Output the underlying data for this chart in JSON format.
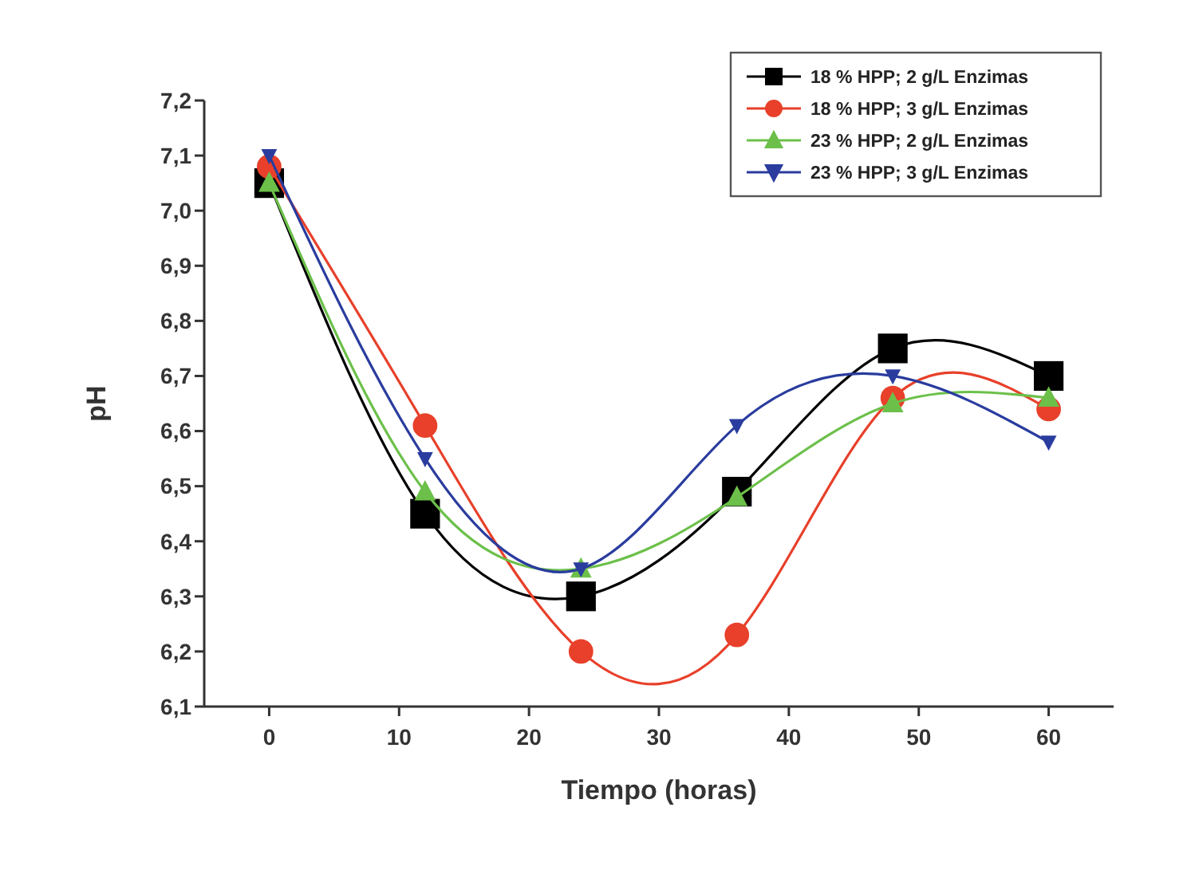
{
  "chart_data": {
    "type": "line",
    "xlabel": "Tiempo (horas)",
    "ylabel": "pH",
    "x": [
      0,
      12,
      24,
      36,
      48,
      60
    ],
    "series": [
      {
        "name": "18 % HPP; 2 g/L Enzimas",
        "color": "#000000",
        "marker": "square",
        "values": [
          7.05,
          6.45,
          6.3,
          6.49,
          6.75,
          6.7
        ]
      },
      {
        "name": "18 % HPP; 3 g/L Enzimas",
        "color": "#e8402a",
        "marker": "circle",
        "values": [
          7.08,
          6.61,
          6.2,
          6.23,
          6.66,
          6.64
        ]
      },
      {
        "name": "23 % HPP; 2 g/L Enzimas",
        "color": "#6cc04a",
        "marker": "triangle",
        "values": [
          7.05,
          6.49,
          6.35,
          6.48,
          6.65,
          6.66
        ]
      },
      {
        "name": "23 % HPP; 3 g/L Enzimas",
        "color": "#2a3c9e",
        "marker": "triangle-down",
        "values": [
          7.1,
          6.55,
          6.35,
          6.61,
          6.7,
          6.58
        ]
      }
    ],
    "xlim": [
      -5,
      65
    ],
    "xticks": [
      0,
      10,
      20,
      30,
      40,
      50,
      60
    ],
    "ylim": [
      6.1,
      7.2
    ],
    "yticks": [
      {
        "value": 6.1,
        "label": "6,1"
      },
      {
        "value": 6.2,
        "label": "6,2"
      },
      {
        "value": 6.3,
        "label": "6,3"
      },
      {
        "value": 6.4,
        "label": "6,4"
      },
      {
        "value": 6.5,
        "label": "6,5"
      },
      {
        "value": 6.6,
        "label": "6,6"
      },
      {
        "value": 6.7,
        "label": "6,7"
      },
      {
        "value": 6.8,
        "label": "6,8"
      },
      {
        "value": 6.9,
        "label": "6,9"
      },
      {
        "value": 7.0,
        "label": "7,0"
      },
      {
        "value": 7.1,
        "label": "7,1"
      },
      {
        "value": 7.2,
        "label": "7,2"
      }
    ],
    "grid": false,
    "legend": "top right",
    "line_style": "solid"
  }
}
